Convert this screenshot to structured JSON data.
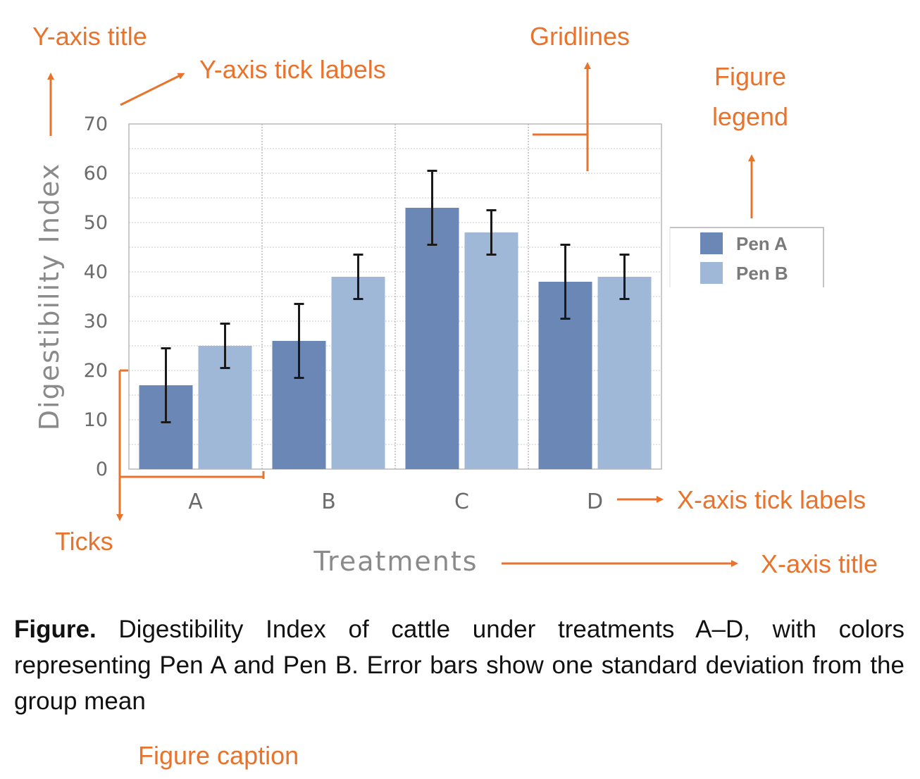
{
  "chart_data": {
    "type": "bar",
    "categories": [
      "A",
      "B",
      "C",
      "D"
    ],
    "series": [
      {
        "name": "Pen A",
        "color": "#6a87b6",
        "values": [
          17,
          26,
          53,
          38
        ],
        "error": [
          7.5,
          7.5,
          7.5,
          7.5
        ]
      },
      {
        "name": "Pen B",
        "color": "#9fb8d8",
        "values": [
          25,
          39,
          48,
          39
        ],
        "error": [
          4.5,
          4.5,
          4.5,
          4.5
        ]
      }
    ],
    "xlabel": "Treatments",
    "ylabel": "Digestibility Index",
    "ylim": [
      0,
      70
    ],
    "yticks": [
      "0",
      "10",
      "20",
      "30",
      "40",
      "50",
      "60",
      "70"
    ],
    "grid": true
  },
  "annotations": {
    "y_axis_title": "Y-axis title",
    "y_tick_labels": "Y-axis tick labels",
    "gridlines": "Gridlines",
    "legend_line1": "Figure",
    "legend_line2": "legend",
    "x_tick_labels": "X-axis tick labels",
    "ticks": "Ticks",
    "x_axis_title": "X-axis title",
    "figure_caption": "Figure caption"
  },
  "caption": {
    "label": "Figure.",
    "text": " Digestibility Index of cattle under treatments A–D, with colors representing Pen A and Pen B. Error bars show one standard deviation from the group mean"
  },
  "colors": {
    "accent": "#e8732c",
    "pen_a": "#6a87b6",
    "pen_b": "#9fb8d8"
  }
}
